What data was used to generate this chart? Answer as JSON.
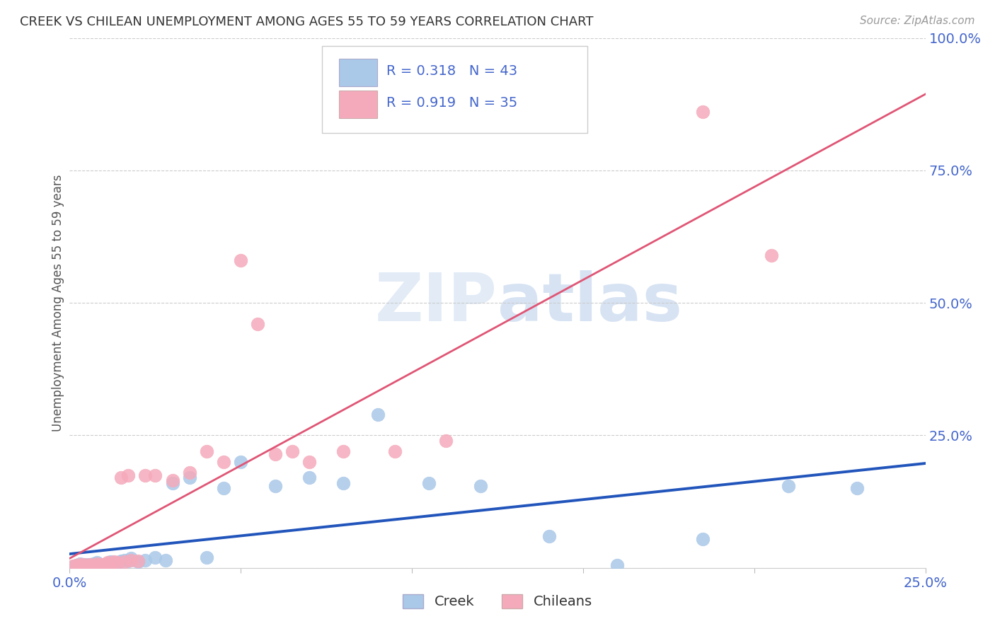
{
  "title": "CREEK VS CHILEAN UNEMPLOYMENT AMONG AGES 55 TO 59 YEARS CORRELATION CHART",
  "source": "Source: ZipAtlas.com",
  "ylabel": "Unemployment Among Ages 55 to 59 years",
  "xlim": [
    0.0,
    0.25
  ],
  "ylim": [
    0.0,
    1.0
  ],
  "xticks": [
    0.0,
    0.05,
    0.1,
    0.15,
    0.2,
    0.25
  ],
  "yticks": [
    0.0,
    0.25,
    0.5,
    0.75,
    1.0
  ],
  "xticklabels": [
    "0.0%",
    "",
    "",
    "",
    "",
    "25.0%"
  ],
  "yticklabels_right": [
    "",
    "25.0%",
    "50.0%",
    "75.0%",
    "100.0%"
  ],
  "creek_R": 0.318,
  "creek_N": 43,
  "chilean_R": 0.919,
  "chilean_N": 35,
  "creek_color": "#aac8e8",
  "chilean_color": "#f5aabb",
  "creek_line_color": "#2255bb",
  "chilean_line_color": "#e05575",
  "tick_color": "#4466cc",
  "background_color": "#ffffff",
  "creek_x": [
    0.001,
    0.002,
    0.003,
    0.003,
    0.004,
    0.004,
    0.005,
    0.005,
    0.006,
    0.007,
    0.007,
    0.008,
    0.008,
    0.009,
    0.01,
    0.011,
    0.012,
    0.013,
    0.014,
    0.015,
    0.016,
    0.017,
    0.018,
    0.02,
    0.022,
    0.025,
    0.028,
    0.03,
    0.035,
    0.04,
    0.045,
    0.05,
    0.06,
    0.07,
    0.08,
    0.09,
    0.105,
    0.12,
    0.14,
    0.16,
    0.185,
    0.21,
    0.23
  ],
  "creek_y": [
    0.003,
    0.005,
    0.004,
    0.008,
    0.003,
    0.006,
    0.005,
    0.007,
    0.006,
    0.004,
    0.008,
    0.005,
    0.01,
    0.007,
    0.006,
    0.008,
    0.012,
    0.01,
    0.009,
    0.013,
    0.015,
    0.013,
    0.018,
    0.012,
    0.015,
    0.02,
    0.015,
    0.16,
    0.17,
    0.02,
    0.15,
    0.2,
    0.155,
    0.17,
    0.16,
    0.29,
    0.16,
    0.155,
    0.06,
    0.005,
    0.055,
    0.155,
    0.15
  ],
  "chilean_x": [
    0.001,
    0.002,
    0.003,
    0.004,
    0.005,
    0.006,
    0.007,
    0.008,
    0.009,
    0.01,
    0.011,
    0.012,
    0.013,
    0.014,
    0.015,
    0.016,
    0.017,
    0.018,
    0.02,
    0.022,
    0.025,
    0.03,
    0.035,
    0.04,
    0.045,
    0.05,
    0.055,
    0.06,
    0.065,
    0.07,
    0.08,
    0.095,
    0.11,
    0.185,
    0.205
  ],
  "chilean_y": [
    0.004,
    0.005,
    0.006,
    0.007,
    0.004,
    0.006,
    0.005,
    0.008,
    0.007,
    0.006,
    0.01,
    0.009,
    0.012,
    0.011,
    0.17,
    0.012,
    0.175,
    0.015,
    0.013,
    0.175,
    0.175,
    0.165,
    0.18,
    0.22,
    0.2,
    0.58,
    0.46,
    0.215,
    0.22,
    0.2,
    0.22,
    0.22,
    0.24,
    0.86,
    0.59
  ]
}
